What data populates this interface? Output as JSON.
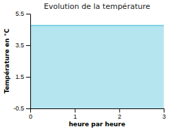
{
  "chart_data": {
    "type": "area",
    "title": "Evolution de la température",
    "xlabel": "heure par heure",
    "ylabel": "Température en °C",
    "x": [
      0,
      3
    ],
    "values": [
      4.75,
      4.75
    ],
    "color": "#5bc8dc",
    "xlim": [
      0,
      3
    ],
    "ylim": [
      -0.5,
      5.5
    ],
    "xticks": [
      0,
      1,
      2,
      3
    ],
    "yticks": [
      -0.5,
      1.5,
      3.5,
      5.5
    ],
    "grid": false
  }
}
